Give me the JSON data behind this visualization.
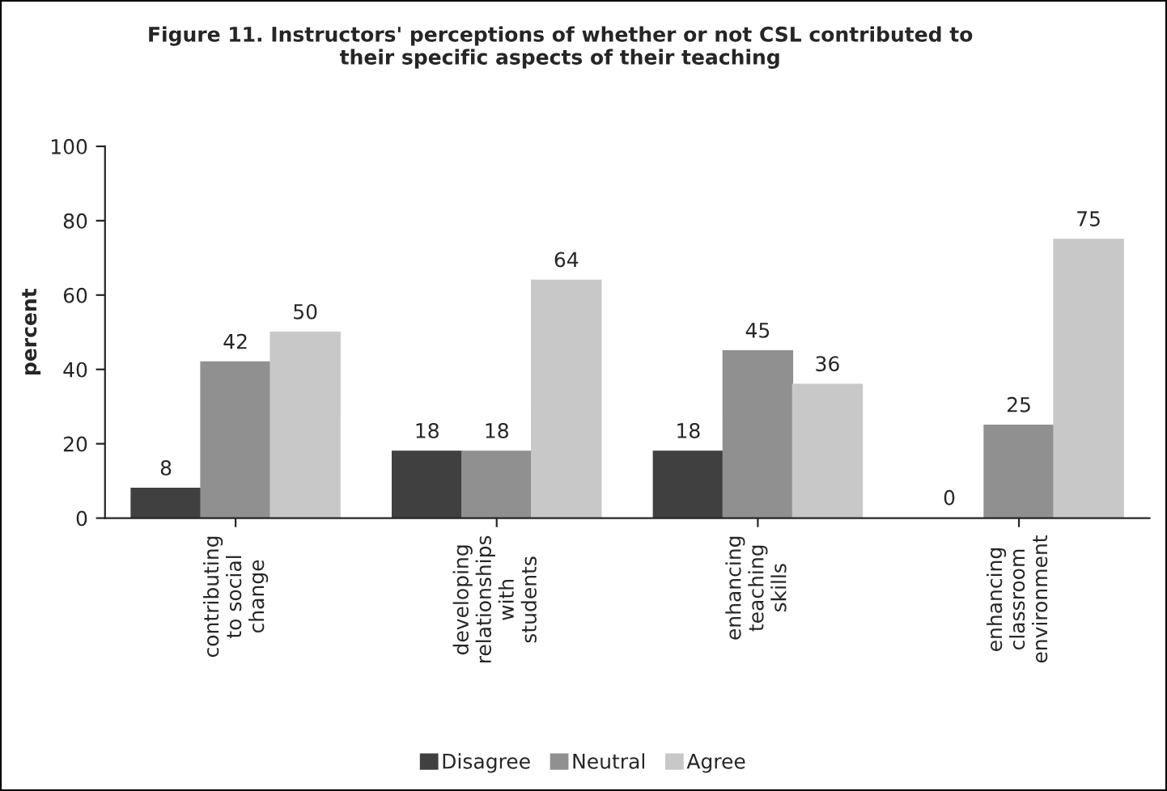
{
  "chart_data": {
    "type": "bar",
    "title": "Figure 11. Instructors' perceptions of whether or not CSL contributed to\ntheir specific aspects of their teaching",
    "ylabel": "percent",
    "categories": [
      "contributing\nto social\nchange",
      "developing\nrelationships\nwith\nstudents",
      "enhancing\nteaching\nskills",
      "enhancing\nclassroom\nenvironment"
    ],
    "series": [
      {
        "name": "Disagree",
        "color": "#404040",
        "values": [
          8,
          18,
          18,
          0
        ]
      },
      {
        "name": "Neutral",
        "color": "#909090",
        "values": [
          42,
          18,
          45,
          25
        ]
      },
      {
        "name": "Agree",
        "color": "#c8c8c8",
        "values": [
          50,
          64,
          36,
          75
        ]
      }
    ],
    "ylim": [
      0,
      100
    ],
    "yticks": [
      0,
      20,
      40,
      60,
      80,
      100
    ],
    "grid": false,
    "legend": "bottom",
    "data_labels": true
  }
}
